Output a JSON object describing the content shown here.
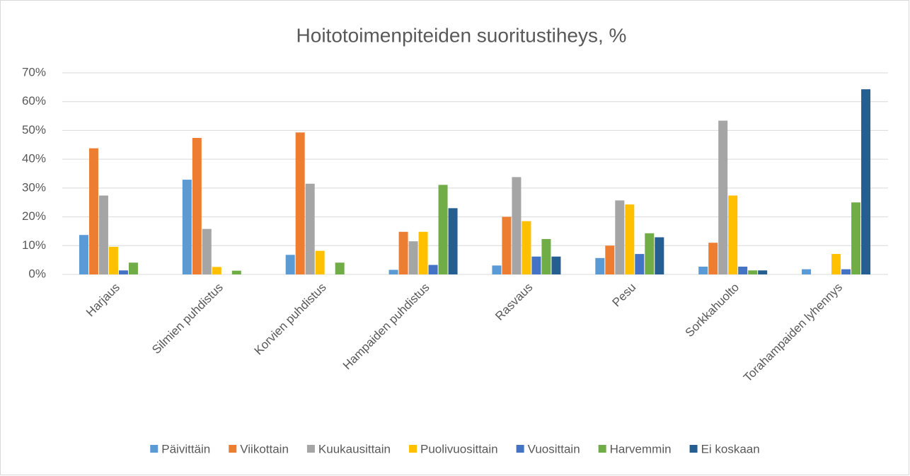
{
  "chart_data": {
    "type": "bar",
    "title": "Hoitotoimenpiteiden suoritustiheys, %",
    "categories": [
      "Harjaus",
      "Silmien puhdistus",
      "Korvien puhdistus",
      "Hampaiden puhdistus",
      "Rasvaus",
      "Pesu",
      "Sorkkahuolto",
      "Torahampaiden lyhennys"
    ],
    "series": [
      {
        "name": "Päivittäin",
        "color": "#5b9bd5",
        "values": [
          13.7,
          32.9,
          6.8,
          1.6,
          3.1,
          5.7,
          2.7,
          1.8
        ]
      },
      {
        "name": "Viikottain",
        "color": "#ed7d31",
        "values": [
          43.8,
          47.4,
          49.3,
          14.8,
          20.0,
          10.0,
          11.0,
          0
        ]
      },
      {
        "name": "Kuukausittain",
        "color": "#a5a5a5",
        "values": [
          27.4,
          15.8,
          31.5,
          11.5,
          33.8,
          25.7,
          53.4,
          0
        ]
      },
      {
        "name": "Puolivuosittain",
        "color": "#ffc000",
        "values": [
          9.6,
          2.6,
          8.2,
          14.8,
          18.5,
          24.3,
          27.4,
          7.1
        ]
      },
      {
        "name": "Vuosittain",
        "color": "#4472c4",
        "values": [
          1.4,
          0,
          0,
          3.3,
          6.2,
          7.1,
          2.7,
          1.8
        ]
      },
      {
        "name": "Harvemmin",
        "color": "#70ad47",
        "values": [
          4.1,
          1.3,
          4.1,
          31.1,
          12.3,
          14.3,
          1.4,
          25.0
        ]
      },
      {
        "name": "Ei koskaan",
        "color": "#255e91",
        "values": [
          0,
          0,
          0,
          23.0,
          6.2,
          12.9,
          1.4,
          64.3
        ]
      }
    ],
    "ylim": [
      0,
      70
    ],
    "yticks": [
      {
        "value": 0,
        "label": "0%"
      },
      {
        "value": 10,
        "label": "10%"
      },
      {
        "value": 20,
        "label": "20%"
      },
      {
        "value": 30,
        "label": "30%"
      },
      {
        "value": 40,
        "label": "40%"
      },
      {
        "value": 50,
        "label": "50%"
      },
      {
        "value": 60,
        "label": "60%"
      },
      {
        "value": 70,
        "label": "70%"
      }
    ],
    "grid": true,
    "legend": "bottom"
  }
}
